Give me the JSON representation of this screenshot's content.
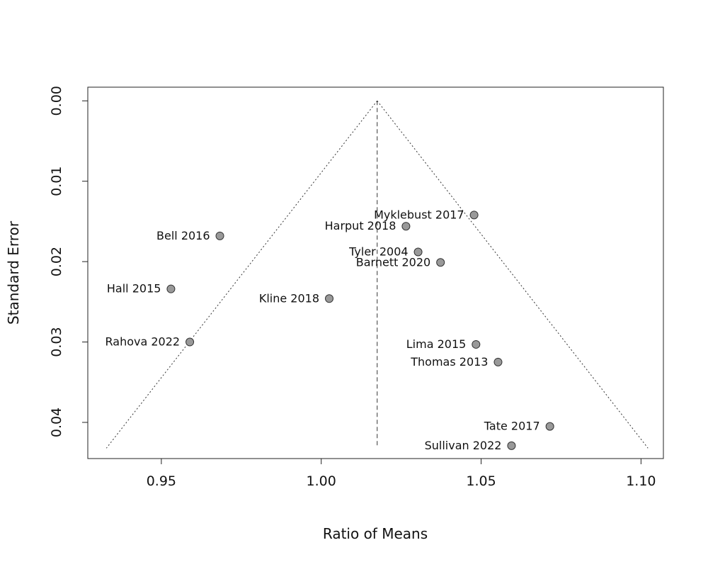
{
  "chart_data": {
    "type": "scatter",
    "subtype": "funnel-plot",
    "title": "",
    "xlabel": "Ratio of Means",
    "ylabel": "Standard Error",
    "xlim": [
      0.927,
      1.107
    ],
    "ylim": [
      0.0445,
      -0.0017
    ],
    "y_reversed": true,
    "xticks": [
      "0.95",
      "1.00",
      "1.05",
      "1.10"
    ],
    "yticks": [
      "0.00",
      "0.01",
      "0.02",
      "0.03",
      "0.04"
    ],
    "grid": false,
    "legend": "none",
    "point_color": "#999999",
    "center": 1.0175,
    "funnel_z": 1.96,
    "funnel_se_max": 0.0432,
    "points": [
      {
        "label": "Myklebust 2017",
        "x": 1.0478,
        "y": 0.0142
      },
      {
        "label": "Harput 2018",
        "x": 1.0265,
        "y": 0.0156
      },
      {
        "label": "Bell 2016",
        "x": 0.9683,
        "y": 0.0168
      },
      {
        "label": "Tyler 2004",
        "x": 1.0303,
        "y": 0.0188
      },
      {
        "label": "Barnett 2020",
        "x": 1.0373,
        "y": 0.0201
      },
      {
        "label": "Hall 2015",
        "x": 0.953,
        "y": 0.0234
      },
      {
        "label": "Kline 2018",
        "x": 1.0025,
        "y": 0.0246
      },
      {
        "label": "Rahova 2022",
        "x": 0.9589,
        "y": 0.03
      },
      {
        "label": "Lima 2015",
        "x": 1.0484,
        "y": 0.0303
      },
      {
        "label": "Thomas 2013",
        "x": 1.0553,
        "y": 0.0325
      },
      {
        "label": "Tate 2017",
        "x": 1.0715,
        "y": 0.0405
      },
      {
        "label": "Sullivan 2022",
        "x": 1.0595,
        "y": 0.0429
      }
    ]
  }
}
